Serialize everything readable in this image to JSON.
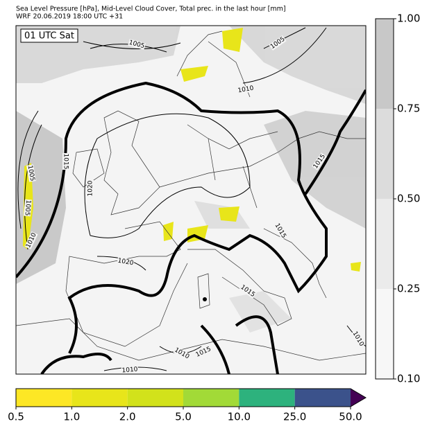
{
  "header": {
    "title": "Sea Level Pressure [hPa], Mid-Level Cloud Cover, Total prec. in the last hour [mm]",
    "subtitle": "WRF 20.06.2019 18:00 UTC +31"
  },
  "map": {
    "time_label": "01 UTC Sat",
    "isobar_labels": [
      "1005",
      "1005",
      "1010",
      "1015",
      "1020",
      "1005",
      "1005",
      "1010",
      "1020",
      "1015",
      "1015",
      "1015",
      "1010",
      "1015",
      "1010",
      "1010"
    ]
  },
  "cloud_colorbar": {
    "labels": [
      "0.10",
      "0.25",
      "0.50",
      "0.75",
      "1.00"
    ],
    "colors": [
      "#f7f7f7",
      "#ebebeb",
      "#dcdcdc",
      "#c8c8c8"
    ]
  },
  "precip_colorbar": {
    "labels": [
      "0.5",
      "1.0",
      "2.0",
      "5.0",
      "10.0",
      "25.0",
      "50.0"
    ],
    "colors": [
      "#fde725",
      "#e8e51a",
      "#d2e21b",
      "#a2da37",
      "#2db27d",
      "#3b528b"
    ],
    "extend_color": "#440154"
  }
}
